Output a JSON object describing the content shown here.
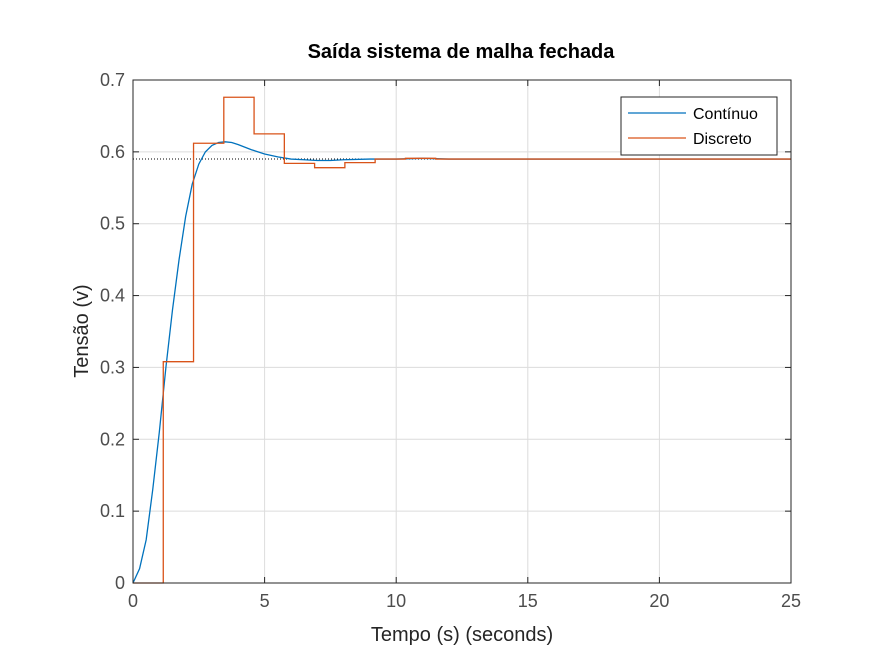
{
  "chart_data": {
    "type": "line",
    "title": "Saída sistema de malha fechada",
    "xlabel": "Tempo (s) (seconds)",
    "ylabel": "Tensão (v)",
    "xlim": [
      0,
      25
    ],
    "ylim": [
      0,
      0.7
    ],
    "xticks": [
      0,
      5,
      10,
      15,
      20,
      25
    ],
    "yticks": [
      0,
      0.1,
      0.2,
      0.3,
      0.4,
      0.5,
      0.6,
      0.7
    ],
    "xtick_labels": [
      "0",
      "5",
      "10",
      "15",
      "20",
      "25"
    ],
    "ytick_labels": [
      "0",
      "0.1",
      "0.2",
      "0.3",
      "0.4",
      "0.5",
      "0.6",
      "0.7"
    ],
    "grid": true,
    "legend_position": "top-right",
    "steady_state_value": 0.59,
    "series": [
      {
        "name": "Contínuo",
        "style": "line",
        "color": "#0072BD",
        "x": [
          0,
          0.25,
          0.5,
          0.75,
          1.0,
          1.25,
          1.5,
          1.75,
          2.0,
          2.25,
          2.5,
          2.75,
          3.0,
          3.25,
          3.5,
          3.75,
          4.0,
          4.5,
          5.0,
          5.5,
          6.0,
          6.5,
          7.0,
          7.5,
          8.0,
          9.0,
          10.0,
          11.0,
          12.0,
          25.0
        ],
        "y": [
          0,
          0.02,
          0.06,
          0.13,
          0.21,
          0.3,
          0.38,
          0.45,
          0.51,
          0.555,
          0.583,
          0.6,
          0.609,
          0.613,
          0.614,
          0.613,
          0.61,
          0.603,
          0.597,
          0.593,
          0.59,
          0.589,
          0.588,
          0.588,
          0.589,
          0.59,
          0.59,
          0.591,
          0.59,
          0.59
        ]
      },
      {
        "name": "Discreto",
        "style": "step",
        "color": "#D95319",
        "x": [
          0,
          1.15,
          2.3,
          3.45,
          4.6,
          5.75,
          6.9,
          8.05,
          9.2,
          10.35,
          11.5,
          12.65
        ],
        "y": [
          0,
          0.308,
          0.612,
          0.676,
          0.625,
          0.584,
          0.578,
          0.585,
          0.59,
          0.591,
          0.59,
          0.59
        ]
      }
    ]
  }
}
